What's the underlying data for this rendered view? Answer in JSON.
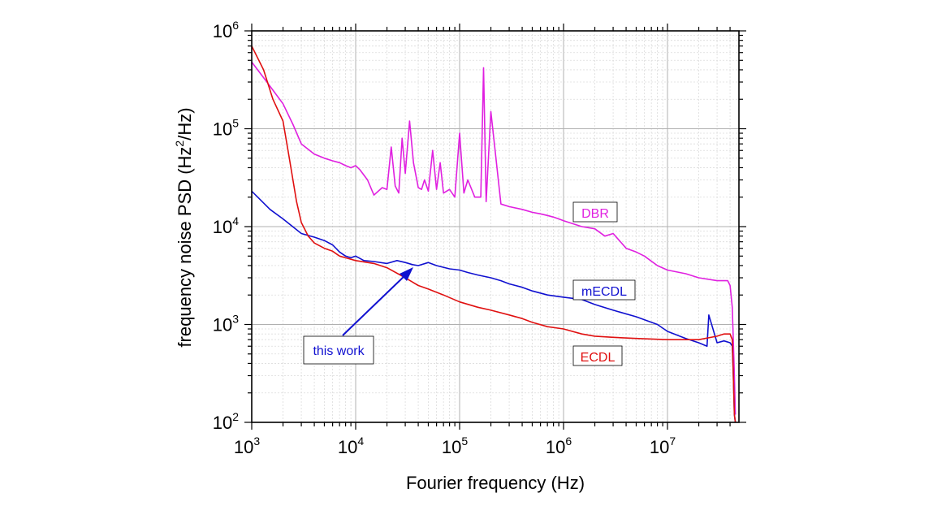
{
  "chart_data": {
    "type": "line",
    "title": "",
    "xlabel": "Fourier frequency (Hz)",
    "ylabel_parts": [
      "frequency noise PSD (Hz",
      "2",
      "/Hz)"
    ],
    "x_scale": "log",
    "y_scale": "log",
    "xlim": [
      1000,
      50000000
    ],
    "ylim": [
      100,
      1000000
    ],
    "grid": "major and minor",
    "x_ticks": [
      {
        "value": 1000,
        "base": "10",
        "exp": "3"
      },
      {
        "value": 10000,
        "base": "10",
        "exp": "4"
      },
      {
        "value": 100000,
        "base": "10",
        "exp": "5"
      },
      {
        "value": 1000000,
        "base": "10",
        "exp": "6"
      },
      {
        "value": 10000000,
        "base": "10",
        "exp": "7"
      }
    ],
    "y_ticks": [
      {
        "value": 100,
        "base": "10",
        "exp": "2"
      },
      {
        "value": 1000,
        "base": "10",
        "exp": "3"
      },
      {
        "value": 10000,
        "base": "10",
        "exp": "4"
      },
      {
        "value": 100000,
        "base": "10",
        "exp": "5"
      },
      {
        "value": 1000000,
        "base": "10",
        "exp": "6"
      }
    ],
    "series": [
      {
        "name": "DBR",
        "color": "#e020e0",
        "x": [
          1000,
          1400,
          2000,
          2500,
          3000,
          4000,
          5000,
          6000,
          7000,
          8000,
          9000,
          10000,
          11000,
          13000,
          15000,
          18000,
          20000,
          22000,
          24000,
          26000,
          28000,
          30000,
          33000,
          36000,
          40000,
          43000,
          46000,
          50000,
          55000,
          60000,
          65000,
          70000,
          80000,
          90000,
          100000,
          110000,
          120000,
          140000,
          160000,
          170000,
          180000,
          200000,
          250000,
          300000,
          400000,
          500000,
          600000,
          700000,
          800000,
          900000,
          1000000,
          1500000,
          2000000,
          2500000,
          3000000,
          4000000,
          5000000,
          6000000,
          8000000,
          10000000,
          15000000,
          20000000,
          30000000,
          38000000,
          40000000,
          42000000,
          44000000,
          45000000
        ],
        "y": [
          480000,
          300000,
          180000,
          110000,
          70000,
          55000,
          50000,
          47000,
          45000,
          42000,
          40000,
          42000,
          38000,
          30000,
          21000,
          25000,
          24000,
          65000,
          26000,
          22000,
          80000,
          35000,
          120000,
          45000,
          25000,
          24000,
          30000,
          23000,
          60000,
          24000,
          45000,
          22000,
          24000,
          20000,
          90000,
          22000,
          30000,
          20000,
          20000,
          420000,
          18000,
          150000,
          17000,
          16000,
          15000,
          14000,
          13500,
          13000,
          12500,
          12000,
          11500,
          10000,
          9500,
          8000,
          8500,
          6000,
          5500,
          5000,
          4000,
          3600,
          3300,
          3000,
          2800,
          2800,
          2500,
          1500,
          300,
          120
        ]
      },
      {
        "name": "mECDL",
        "color": "#1010d0",
        "x": [
          1000,
          1500,
          2000,
          3000,
          4000,
          5000,
          6000,
          7000,
          8000,
          9000,
          10000,
          12000,
          15000,
          20000,
          25000,
          30000,
          35000,
          40000,
          50000,
          60000,
          80000,
          100000,
          120000,
          150000,
          200000,
          250000,
          300000,
          400000,
          500000,
          700000,
          1000000,
          1500000,
          2000000,
          3000000,
          5000000,
          8000000,
          10000000,
          15000000,
          20000000,
          24000000,
          25000000,
          30000000,
          35000000,
          40000000,
          42000000,
          43000000,
          44000000,
          45000000
        ],
        "y": [
          23000,
          15000,
          12000,
          8500,
          7800,
          7200,
          6500,
          5500,
          5000,
          4800,
          5000,
          4500,
          4400,
          4200,
          4500,
          4300,
          4100,
          4000,
          4300,
          4000,
          3700,
          3600,
          3400,
          3200,
          3000,
          2800,
          2600,
          2400,
          2200,
          2000,
          1900,
          1800,
          1600,
          1400,
          1200,
          1000,
          850,
          720,
          650,
          600,
          1250,
          650,
          680,
          650,
          600,
          300,
          120,
          100
        ]
      },
      {
        "name": "ECDL",
        "color": "#e01010",
        "x": [
          1000,
          1300,
          1600,
          2000,
          2300,
          2700,
          3000,
          3500,
          4000,
          5000,
          6000,
          7000,
          8000,
          10000,
          15000,
          20000,
          30000,
          40000,
          50000,
          70000,
          100000,
          150000,
          200000,
          300000,
          400000,
          500000,
          700000,
          1000000,
          1500000,
          2000000,
          3000000,
          5000000,
          10000000,
          20000000,
          30000000,
          35000000,
          40000000,
          42000000,
          43000000,
          44000000,
          45000000
        ],
        "y": [
          700000,
          400000,
          200000,
          120000,
          50000,
          18000,
          11000,
          8000,
          6800,
          6000,
          5600,
          5000,
          4800,
          4500,
          4200,
          3800,
          3000,
          2500,
          2300,
          2000,
          1700,
          1500,
          1400,
          1250,
          1150,
          1050,
          950,
          900,
          800,
          760,
          740,
          720,
          700,
          700,
          760,
          800,
          800,
          700,
          300,
          120,
          100
        ]
      }
    ],
    "annotations": [
      {
        "text": "DBR",
        "color": "#e020e0"
      },
      {
        "text": "mECDL",
        "color": "#1010d0"
      },
      {
        "text": "ECDL",
        "color": "#e01010"
      },
      {
        "text": "this work",
        "color": "#1010d0"
      }
    ]
  }
}
